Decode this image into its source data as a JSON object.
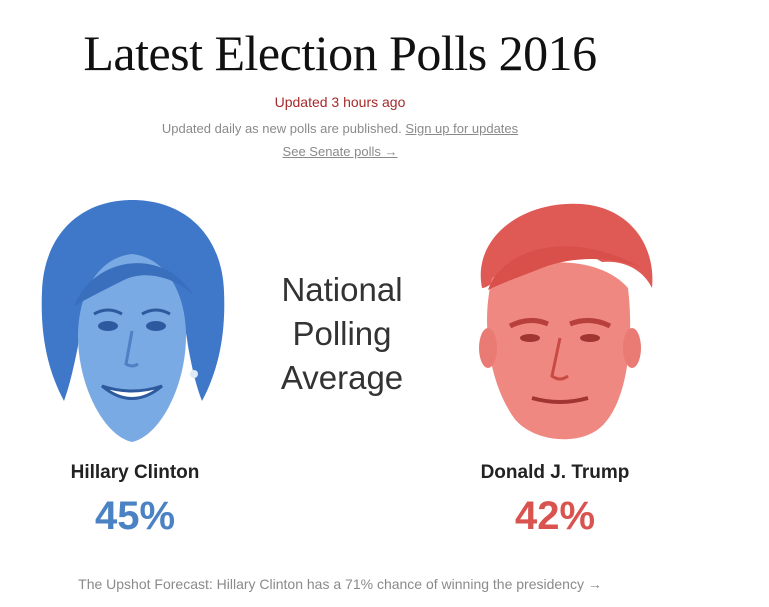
{
  "header": {
    "title": "Latest Election Polls 2016",
    "updated": "Updated 3 hours ago",
    "subtitle": "Updated daily as new polls are published.",
    "signup_link": "Sign up for updates",
    "senate_link": "See Senate polls →"
  },
  "center": {
    "line1": "National",
    "line2": "Polling",
    "line3": "Average"
  },
  "candidates": [
    {
      "name": "Hillary Clinton",
      "percent": "45%",
      "color": "#4a82c4"
    },
    {
      "name": "Donald J. Trump",
      "percent": "42%",
      "color": "#d9534f"
    }
  ],
  "forecast": {
    "text": "The Upshot Forecast: Hillary Clinton has a 71% chance of winning the presidency →"
  },
  "colors": {
    "clinton_face": "#5a8fd6",
    "trump_face": "#e86a64",
    "accent_red": "#a52a2a"
  }
}
